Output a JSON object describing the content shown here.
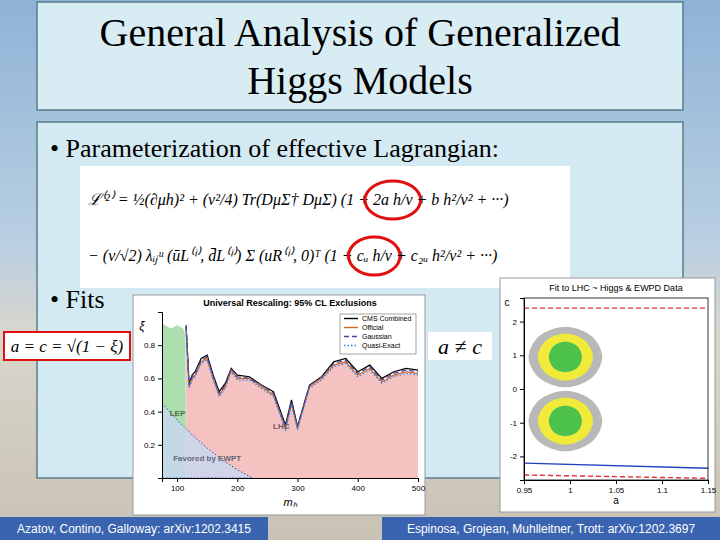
{
  "slide": {
    "title_lines": [
      "General Analysis of Generalized",
      "Higgs Models"
    ],
    "bullets": [
      "• Parameterization of effective Lagrangian:",
      "• Fits"
    ],
    "equations": [
      [
        "ℒ⁽²⁾ = ½(∂μh)² + (v²/4) Tr(DμΣ† DμΣ) (1 + ",
        "2a h/v",
        " + b h²/v² + ···)"
      ],
      [
        "− (v/√2) λᵢⱼᵘ (ūL⁽ⁱ⁾, d̄L⁽ⁱ⁾) Σ (uR⁽ⁱ⁾, 0)ᵀ (1 + ",
        "cᵤ h/v",
        " + c₂ᵤ h²/v² + ···)"
      ]
    ],
    "fit_labels": [
      "a = c = √(1 − ξ)",
      "a ≠ c"
    ],
    "citations": [
      "Azatov, Contino, Galloway: arXiv:1202.3415",
      "Espinosa, Grojean, Muhlleitner, Trott: arXiv:1202.3697"
    ]
  },
  "chart_data": [
    {
      "type": "line",
      "title": "Universal Rescaling: 95% CL Exclusions",
      "x_label": "mₕ",
      "y_label": "ξ",
      "x": [
        115,
        120,
        125,
        130,
        140,
        150,
        160,
        170,
        180,
        190,
        200,
        220,
        240,
        260,
        280,
        290,
        300,
        320,
        340,
        360,
        380,
        400,
        420,
        440,
        460,
        480,
        500
      ],
      "series": [
        {
          "name": "CMS Combined",
          "color": "#000000",
          "line_style": "solid",
          "values": [
            0.92,
            0.57,
            0.62,
            0.64,
            0.72,
            0.74,
            0.62,
            0.52,
            0.57,
            0.66,
            0.62,
            0.61,
            0.56,
            0.52,
            0.32,
            0.47,
            0.31,
            0.56,
            0.61,
            0.7,
            0.72,
            0.64,
            0.68,
            0.6,
            0.64,
            0.66,
            0.65
          ]
        },
        {
          "name": "Official",
          "color": "#d2691e",
          "line_style": "solid",
          "values": [
            0.9,
            0.55,
            0.6,
            0.62,
            0.7,
            0.72,
            0.6,
            0.5,
            0.55,
            0.65,
            0.6,
            0.6,
            0.55,
            0.5,
            0.3,
            0.45,
            0.3,
            0.55,
            0.6,
            0.68,
            0.7,
            0.62,
            0.66,
            0.58,
            0.62,
            0.64,
            0.63
          ]
        },
        {
          "name": "Gaussian",
          "color": "#4b3fa0",
          "line_style": "dashed",
          "values": [
            0.91,
            0.56,
            0.61,
            0.63,
            0.71,
            0.73,
            0.61,
            0.51,
            0.56,
            0.66,
            0.61,
            0.6,
            0.56,
            0.51,
            0.31,
            0.46,
            0.31,
            0.56,
            0.61,
            0.69,
            0.71,
            0.63,
            0.67,
            0.59,
            0.63,
            0.65,
            0.64
          ]
        },
        {
          "name": "Quasi-Exact",
          "color": "#1e90ff",
          "line_style": "dotted",
          "values": [
            0.89,
            0.54,
            0.59,
            0.61,
            0.69,
            0.71,
            0.59,
            0.49,
            0.54,
            0.64,
            0.59,
            0.59,
            0.54,
            0.49,
            0.29,
            0.44,
            0.29,
            0.54,
            0.59,
            0.67,
            0.69,
            0.61,
            0.65,
            0.57,
            0.61,
            0.63,
            0.62
          ]
        }
      ],
      "regions": [
        {
          "name": "LHC",
          "color": "#f4b6b6",
          "x": [
            115,
            120,
            125,
            130,
            140,
            150,
            160,
            170,
            180,
            190,
            200,
            220,
            240,
            260,
            280,
            290,
            300,
            320,
            340,
            360,
            380,
            400,
            420,
            440,
            460,
            480,
            500
          ],
          "values": [
            0.9,
            0.55,
            0.6,
            0.62,
            0.7,
            0.72,
            0.6,
            0.5,
            0.55,
            0.65,
            0.6,
            0.6,
            0.55,
            0.5,
            0.3,
            0.45,
            0.3,
            0.55,
            0.6,
            0.68,
            0.7,
            0.62,
            0.66,
            0.58,
            0.62,
            0.64,
            0.63
          ]
        },
        {
          "name": "LEP",
          "color": "#9fd89f",
          "x": [
            75,
            90,
            100,
            110,
            114,
            115
          ],
          "values": [
            0.93,
            0.9,
            0.92,
            0.9,
            0.86,
            0
          ]
        },
        {
          "name": "Favored by EWPT",
          "color": "#c9d7ee",
          "line_style": "dotted",
          "x": [
            75,
            100,
            125,
            150,
            175,
            200,
            225
          ],
          "values": [
            0.45,
            0.35,
            0.26,
            0.18,
            0.11,
            0.05,
            0
          ]
        }
      ],
      "xlim": [
        75,
        500
      ],
      "ylim": [
        0,
        1
      ],
      "xticks": [
        100,
        200,
        300,
        400,
        500
      ],
      "yticks": [
        0.2,
        0.4,
        0.6,
        0.8
      ],
      "legend": "upper right"
    },
    {
      "type": "contour",
      "title": "Fit to LHC ~ Higgs & EWPD Data",
      "x_label": "a",
      "y_label": "c",
      "regions": [
        {
          "color": "#b8b8b8",
          "x": [
            1.035,
            1.023,
            0.995,
            0.967,
            0.955,
            0.967,
            0.995,
            1.023
          ],
          "values": [
            0.95,
            1.58,
            1.85,
            1.58,
            0.95,
            0.32,
            0.05,
            0.32
          ]
        },
        {
          "color": "#b8b8b8",
          "x": [
            1.035,
            1.023,
            0.995,
            0.967,
            0.955,
            0.967,
            0.995,
            1.023
          ],
          "values": [
            -0.95,
            -1.58,
            -1.85,
            -1.58,
            -0.95,
            -0.32,
            -0.05,
            -0.32
          ]
        },
        {
          "color": "#f2ea3a",
          "x": [
            1.025,
            1.016,
            0.995,
            0.974,
            0.965,
            0.974,
            0.995,
            1.016
          ],
          "values": [
            0.95,
            1.44,
            1.65,
            1.44,
            0.95,
            0.46,
            0.25,
            0.46
          ]
        },
        {
          "color": "#f2ea3a",
          "x": [
            1.025,
            1.016,
            0.995,
            0.974,
            0.965,
            0.974,
            0.995,
            1.016
          ],
          "values": [
            -0.95,
            -1.44,
            -1.65,
            -1.44,
            -0.95,
            -0.46,
            -0.25,
            -0.46
          ]
        },
        {
          "color": "#4cc24c",
          "x": [
            1.013,
            1.008,
            0.995,
            0.982,
            0.977,
            0.982,
            0.995,
            1.008
          ],
          "values": [
            0.95,
            1.27,
            1.4,
            1.27,
            0.95,
            0.63,
            0.5,
            0.63
          ]
        },
        {
          "color": "#4cc24c",
          "x": [
            1.013,
            1.008,
            0.995,
            0.982,
            0.977,
            0.982,
            0.995,
            1.008
          ],
          "values": [
            -0.95,
            -1.27,
            -1.4,
            -1.27,
            -0.95,
            -0.63,
            -0.5,
            -0.63
          ]
        }
      ],
      "x": [
        0.95,
        1.15
      ],
      "series": [
        {
          "color": "#e03030",
          "line_style": "dashed",
          "values": [
            2.4,
            2.4
          ]
        },
        {
          "color": "#2040c0",
          "line_style": "solid",
          "values": [
            -2.2,
            -2.35
          ]
        },
        {
          "color": "#e03030",
          "line_style": "dashed",
          "values": [
            -2.55,
            -2.65
          ]
        }
      ],
      "xlim": [
        0.95,
        1.15
      ],
      "ylim": [
        -2.7,
        2.7
      ],
      "xticks": [
        0.95,
        1,
        1.05,
        1.1,
        1.15
      ],
      "yticks": [
        -2,
        -1,
        0,
        1,
        2
      ]
    }
  ]
}
